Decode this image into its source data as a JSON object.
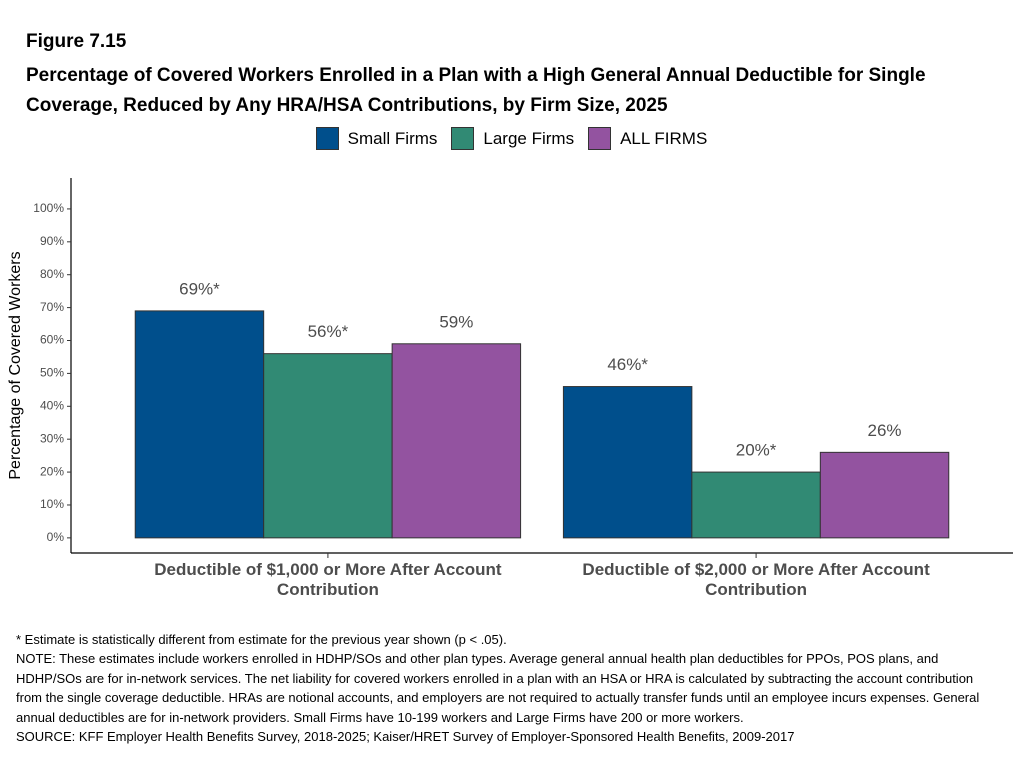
{
  "chart_data": {
    "type": "bar",
    "figure_label": "Figure 7.15",
    "title": "Percentage of Covered Workers Enrolled in a Plan with a High General Annual Deductible for Single Coverage, Reduced by Any HRA/HSA Contributions, by Firm Size, 2025",
    "y_label": "Percentage of Covered Workers",
    "categories": [
      "Deductible of $1,000 or More After Account Contribution",
      "Deductible of $2,000 or More After Account Contribution"
    ],
    "series": [
      {
        "name": "Small Firms",
        "color": "#004f8c",
        "values": [
          69,
          46
        ],
        "value_labels": [
          "69%*",
          "46%*"
        ]
      },
      {
        "name": "Large Firms",
        "color": "#318a74",
        "values": [
          56,
          20
        ],
        "value_labels": [
          "56%*",
          "20%*"
        ]
      },
      {
        "name": "ALL FIRMS",
        "color": "#9353a0",
        "values": [
          59,
          26
        ],
        "value_labels": [
          "59%",
          "26%"
        ]
      }
    ],
    "ylim": [
      -4.6,
      109.4
    ],
    "yticks": [
      {
        "value": 0,
        "label": "0%"
      },
      {
        "value": 10,
        "label": "10%"
      },
      {
        "value": 20,
        "label": "20%"
      },
      {
        "value": 30,
        "label": "30%"
      },
      {
        "value": 40,
        "label": "40%"
      },
      {
        "value": 50,
        "label": "50%"
      },
      {
        "value": 60,
        "label": "60%"
      },
      {
        "value": 70,
        "label": "70%"
      },
      {
        "value": 80,
        "label": "80%"
      },
      {
        "value": 90,
        "label": "90%"
      },
      {
        "value": 100,
        "label": "100%"
      }
    ],
    "legend": "top",
    "grid": false,
    "notes": [
      "* Estimate is statistically different from estimate for the previous year shown (p < .05).",
      "NOTE: These estimates include workers enrolled in HDHP/SOs and other plan types. Average general annual health plan deductibles for PPOs, POS plans, and HDHP/SOs are for in-network services. The net liability for covered workers enrolled in a plan with an HSA or HRA is calculated by subtracting the account contribution from the single coverage deductible. HRAs are notional accounts, and employers are not required to actually transfer funds until an employee incurs expenses. General annual deductibles are for in-network providers. Small Firms have 10-199 workers and Large Firms have 200 or more workers.",
      "SOURCE: KFF Employer Health Benefits Survey, 2018-2025; Kaiser/HRET Survey of Employer-Sponsored Health Benefits, 2009-2017"
    ]
  }
}
